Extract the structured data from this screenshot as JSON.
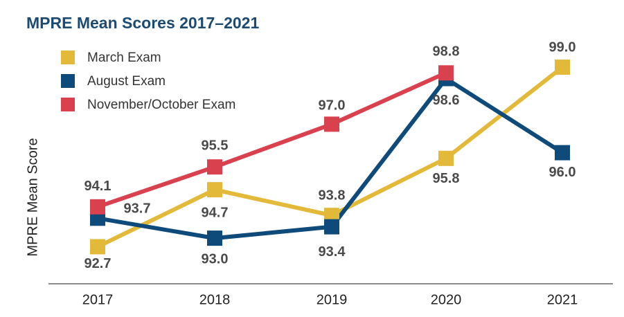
{
  "chart_data": {
    "type": "line",
    "title": "MPRE Mean Scores 2017–2021",
    "y_label": "MPRE Mean Score",
    "categories": [
      "2017",
      "2018",
      "2019",
      "2020",
      "2021"
    ],
    "ylim": [
      91.4,
      99.9
    ],
    "series": [
      {
        "name": "March Exam",
        "color": "#e3b93a",
        "values": [
          92.7,
          94.7,
          93.8,
          95.8,
          99.0
        ],
        "value_labels": [
          "92.7",
          "94.7",
          "93.8",
          "95.8",
          "99.0"
        ]
      },
      {
        "name": "August Exam",
        "color": "#0e4a7a",
        "values": [
          93.7,
          93.0,
          93.4,
          98.6,
          96.0
        ],
        "value_labels": [
          "93.7",
          "93.0",
          "93.4",
          "98.6",
          "96.0"
        ]
      },
      {
        "name": "November/October Exam",
        "color": "#d9414f",
        "values": [
          94.1,
          95.5,
          97.0,
          98.8,
          null
        ],
        "value_labels": [
          "94.1",
          "95.5",
          "97.0",
          "98.8",
          null
        ]
      }
    ]
  }
}
